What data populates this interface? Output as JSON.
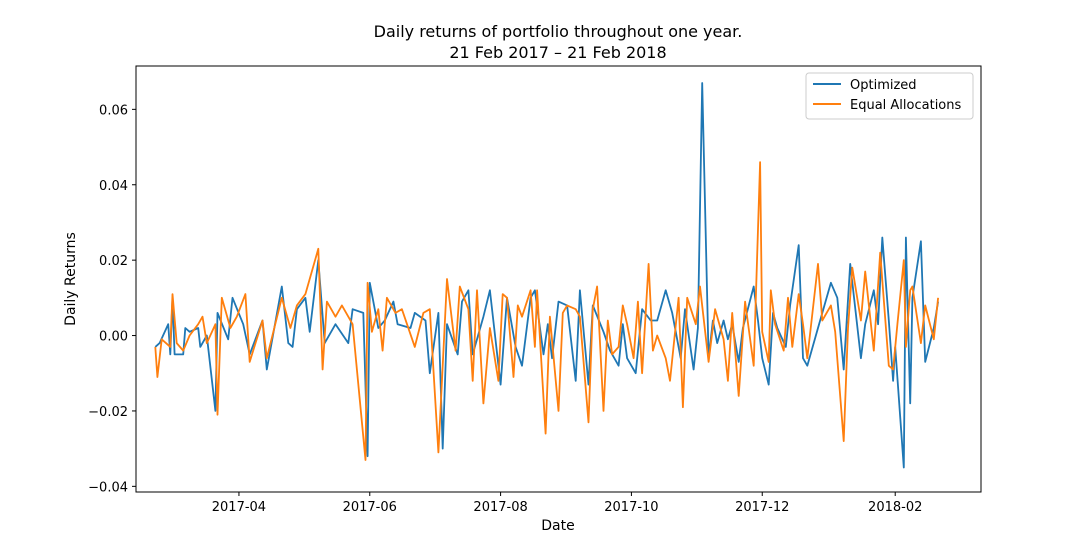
{
  "chart_data": {
    "type": "line",
    "title": "Daily returns of portfolio throughout one year.",
    "subtitle": "21 Feb 2017 – 21 Feb 2018",
    "xlabel": "Date",
    "ylabel": "Daily Returns",
    "x_axis_kind": "date",
    "xlim": [
      "2017-02-12",
      "2018-03-13"
    ],
    "ylim": [
      -0.0415,
      0.0715
    ],
    "x_ticks": [
      "2017-04-01",
      "2017-06-01",
      "2017-08-01",
      "2017-10-01",
      "2017-12-01",
      "2018-02-01"
    ],
    "x_tick_labels": [
      "2017-04",
      "2017-06",
      "2017-08",
      "2017-10",
      "2017-12",
      "2018-02"
    ],
    "y_ticks": [
      -0.04,
      -0.02,
      0.0,
      0.02,
      0.04,
      0.06
    ],
    "y_tick_labels": [
      "−0.04",
      "−0.02",
      "0.00",
      "0.02",
      "0.04",
      "0.06"
    ],
    "grid": false,
    "legend_position": "upper right",
    "series": [
      {
        "name": "Optimized",
        "color": "#1f77b4",
        "points": [
          [
            "2017-02-21",
            -0.003
          ],
          [
            "2017-02-23",
            -0.002
          ],
          [
            "2017-02-27",
            0.003
          ],
          [
            "2017-02-28",
            -0.005
          ],
          [
            "2017-03-01",
            0.01
          ],
          [
            "2017-03-02",
            -0.005
          ],
          [
            "2017-03-06",
            -0.005
          ],
          [
            "2017-03-07",
            0.002
          ],
          [
            "2017-03-09",
            0.001
          ],
          [
            "2017-03-13",
            0.002
          ],
          [
            "2017-03-14",
            -0.003
          ],
          [
            "2017-03-17",
            0.0
          ],
          [
            "2017-03-21",
            -0.02
          ],
          [
            "2017-03-22",
            0.006
          ],
          [
            "2017-03-27",
            -0.001
          ],
          [
            "2017-03-29",
            0.01
          ],
          [
            "2017-04-03",
            0.003
          ],
          [
            "2017-04-06",
            -0.005
          ],
          [
            "2017-04-12",
            0.004
          ],
          [
            "2017-04-14",
            -0.009
          ],
          [
            "2017-04-21",
            0.013
          ],
          [
            "2017-04-24",
            -0.002
          ],
          [
            "2017-04-26",
            -0.003
          ],
          [
            "2017-04-28",
            0.007
          ],
          [
            "2017-05-02",
            0.01
          ],
          [
            "2017-05-04",
            0.001
          ],
          [
            "2017-05-08",
            0.02
          ],
          [
            "2017-05-11",
            -0.002
          ],
          [
            "2017-05-16",
            0.003
          ],
          [
            "2017-05-22",
            -0.002
          ],
          [
            "2017-05-24",
            0.007
          ],
          [
            "2017-05-29",
            0.006
          ],
          [
            "2017-05-31",
            -0.032
          ],
          [
            "2017-06-01",
            0.014
          ],
          [
            "2017-06-05",
            0.002
          ],
          [
            "2017-06-08",
            0.004
          ],
          [
            "2017-06-12",
            0.009
          ],
          [
            "2017-06-14",
            0.003
          ],
          [
            "2017-06-20",
            0.002
          ],
          [
            "2017-06-22",
            0.006
          ],
          [
            "2017-06-27",
            0.004
          ],
          [
            "2017-06-29",
            -0.01
          ],
          [
            "2017-07-03",
            0.006
          ],
          [
            "2017-07-05",
            -0.03
          ],
          [
            "2017-07-07",
            0.003
          ],
          [
            "2017-07-12",
            -0.005
          ],
          [
            "2017-07-14",
            0.009
          ],
          [
            "2017-07-17",
            0.012
          ],
          [
            "2017-07-19",
            -0.005
          ],
          [
            "2017-07-24",
            0.005
          ],
          [
            "2017-07-27",
            0.012
          ],
          [
            "2017-08-01",
            -0.013
          ],
          [
            "2017-08-04",
            0.01
          ],
          [
            "2017-08-08",
            -0.003
          ],
          [
            "2017-08-11",
            -0.008
          ],
          [
            "2017-08-15",
            0.01
          ],
          [
            "2017-08-17",
            0.012
          ],
          [
            "2017-08-21",
            -0.005
          ],
          [
            "2017-08-23",
            0.003
          ],
          [
            "2017-08-25",
            -0.006
          ],
          [
            "2017-08-28",
            0.009
          ],
          [
            "2017-09-01",
            0.008
          ],
          [
            "2017-09-05",
            -0.012
          ],
          [
            "2017-09-07",
            0.012
          ],
          [
            "2017-09-11",
            -0.013
          ],
          [
            "2017-09-13",
            0.008
          ],
          [
            "2017-09-18",
            0.001
          ],
          [
            "2017-09-21",
            -0.004
          ],
          [
            "2017-09-25",
            -0.008
          ],
          [
            "2017-09-27",
            0.003
          ],
          [
            "2017-09-29",
            -0.006
          ],
          [
            "2017-10-03",
            -0.01
          ],
          [
            "2017-10-06",
            0.007
          ],
          [
            "2017-10-10",
            0.004
          ],
          [
            "2017-10-13",
            0.004
          ],
          [
            "2017-10-17",
            0.012
          ],
          [
            "2017-10-20",
            0.006
          ],
          [
            "2017-10-24",
            -0.006
          ],
          [
            "2017-10-26",
            0.007
          ],
          [
            "2017-10-30",
            -0.009
          ],
          [
            "2017-11-01",
            0.002
          ],
          [
            "2017-11-03",
            0.067
          ],
          [
            "2017-11-06",
            -0.006
          ],
          [
            "2017-11-08",
            0.004
          ],
          [
            "2017-11-10",
            -0.002
          ],
          [
            "2017-11-13",
            0.004
          ],
          [
            "2017-11-15",
            -0.001
          ],
          [
            "2017-11-17",
            0.003
          ],
          [
            "2017-11-20",
            -0.007
          ],
          [
            "2017-11-22",
            0.002
          ],
          [
            "2017-11-27",
            0.013
          ],
          [
            "2017-11-29",
            0.004
          ],
          [
            "2017-12-01",
            -0.006
          ],
          [
            "2017-12-04",
            -0.013
          ],
          [
            "2017-12-06",
            0.006
          ],
          [
            "2017-12-08",
            0.002
          ],
          [
            "2017-12-12",
            -0.003
          ],
          [
            "2017-12-14",
            0.008
          ],
          [
            "2017-12-18",
            0.024
          ],
          [
            "2017-12-20",
            -0.006
          ],
          [
            "2017-12-22",
            -0.008
          ],
          [
            "2017-12-27",
            0.002
          ],
          [
            "2018-01-02",
            0.014
          ],
          [
            "2018-01-05",
            0.01
          ],
          [
            "2018-01-08",
            -0.009
          ],
          [
            "2018-01-11",
            0.019
          ],
          [
            "2018-01-16",
            -0.006
          ],
          [
            "2018-01-18",
            0.003
          ],
          [
            "2018-01-22",
            0.012
          ],
          [
            "2018-01-24",
            0.003
          ],
          [
            "2018-01-26",
            0.026
          ],
          [
            "2018-01-29",
            0.004
          ],
          [
            "2018-01-31",
            -0.012
          ],
          [
            "2018-02-01",
            -0.003
          ],
          [
            "2018-02-05",
            -0.035
          ],
          [
            "2018-02-06",
            0.026
          ],
          [
            "2018-02-08",
            -0.018
          ],
          [
            "2018-02-09",
            0.01
          ],
          [
            "2018-02-13",
            0.025
          ],
          [
            "2018-02-15",
            -0.007
          ],
          [
            "2018-02-19",
            0.002
          ],
          [
            "2018-02-21",
            0.009
          ]
        ]
      },
      {
        "name": "Equal Allocations",
        "color": "#ff7f0e",
        "points": [
          [
            "2017-02-21",
            -0.003
          ],
          [
            "2017-02-22",
            -0.011
          ],
          [
            "2017-02-24",
            -0.001
          ],
          [
            "2017-02-28",
            -0.003
          ],
          [
            "2017-03-01",
            0.011
          ],
          [
            "2017-03-03",
            -0.002
          ],
          [
            "2017-03-06",
            -0.004
          ],
          [
            "2017-03-09",
            0.0
          ],
          [
            "2017-03-13",
            0.003
          ],
          [
            "2017-03-15",
            0.005
          ],
          [
            "2017-03-17",
            -0.002
          ],
          [
            "2017-03-21",
            0.003
          ],
          [
            "2017-03-22",
            -0.021
          ],
          [
            "2017-03-24",
            0.01
          ],
          [
            "2017-03-28",
            0.002
          ],
          [
            "2017-03-31",
            0.005
          ],
          [
            "2017-04-04",
            0.011
          ],
          [
            "2017-04-06",
            -0.007
          ],
          [
            "2017-04-12",
            0.004
          ],
          [
            "2017-04-14",
            -0.006
          ],
          [
            "2017-04-21",
            0.01
          ],
          [
            "2017-04-25",
            0.002
          ],
          [
            "2017-04-28",
            0.008
          ],
          [
            "2017-05-02",
            0.011
          ],
          [
            "2017-05-08",
            0.023
          ],
          [
            "2017-05-10",
            -0.009
          ],
          [
            "2017-05-12",
            0.009
          ],
          [
            "2017-05-16",
            0.005
          ],
          [
            "2017-05-19",
            0.008
          ],
          [
            "2017-05-24",
            0.003
          ],
          [
            "2017-05-30",
            -0.033
          ],
          [
            "2017-05-31",
            0.014
          ],
          [
            "2017-06-02",
            0.001
          ],
          [
            "2017-06-05",
            0.007
          ],
          [
            "2017-06-07",
            -0.004
          ],
          [
            "2017-06-09",
            0.01
          ],
          [
            "2017-06-13",
            0.006
          ],
          [
            "2017-06-16",
            0.007
          ],
          [
            "2017-06-22",
            -0.003
          ],
          [
            "2017-06-26",
            0.006
          ],
          [
            "2017-06-29",
            0.007
          ],
          [
            "2017-07-03",
            -0.031
          ],
          [
            "2017-07-07",
            0.015
          ],
          [
            "2017-07-11",
            -0.004
          ],
          [
            "2017-07-13",
            0.013
          ],
          [
            "2017-07-17",
            0.007
          ],
          [
            "2017-07-19",
            -0.012
          ],
          [
            "2017-07-21",
            0.012
          ],
          [
            "2017-07-24",
            -0.018
          ],
          [
            "2017-07-27",
            0.002
          ],
          [
            "2017-07-31",
            -0.012
          ],
          [
            "2017-08-02",
            0.011
          ],
          [
            "2017-08-04",
            0.01
          ],
          [
            "2017-08-07",
            -0.011
          ],
          [
            "2017-08-09",
            0.008
          ],
          [
            "2017-08-11",
            0.005
          ],
          [
            "2017-08-15",
            0.012
          ],
          [
            "2017-08-17",
            -0.003
          ],
          [
            "2017-08-18",
            0.012
          ],
          [
            "2017-08-22",
            -0.026
          ],
          [
            "2017-08-24",
            0.005
          ],
          [
            "2017-08-28",
            -0.02
          ],
          [
            "2017-08-30",
            0.006
          ],
          [
            "2017-09-01",
            0.008
          ],
          [
            "2017-09-05",
            0.007
          ],
          [
            "2017-09-07",
            0.005
          ],
          [
            "2017-09-11",
            -0.023
          ],
          [
            "2017-09-13",
            0.007
          ],
          [
            "2017-09-15",
            0.013
          ],
          [
            "2017-09-18",
            -0.02
          ],
          [
            "2017-09-20",
            0.004
          ],
          [
            "2017-09-22",
            -0.005
          ],
          [
            "2017-09-25",
            -0.003
          ],
          [
            "2017-09-27",
            0.008
          ],
          [
            "2017-09-29",
            0.003
          ],
          [
            "2017-10-02",
            -0.006
          ],
          [
            "2017-10-04",
            0.009
          ],
          [
            "2017-10-06",
            -0.01
          ],
          [
            "2017-10-09",
            0.019
          ],
          [
            "2017-10-11",
            -0.004
          ],
          [
            "2017-10-13",
            0.0
          ],
          [
            "2017-10-17",
            -0.006
          ],
          [
            "2017-10-19",
            -0.012
          ],
          [
            "2017-10-23",
            0.01
          ],
          [
            "2017-10-25",
            -0.019
          ],
          [
            "2017-10-27",
            0.01
          ],
          [
            "2017-10-31",
            0.003
          ],
          [
            "2017-11-02",
            0.013
          ],
          [
            "2017-11-06",
            -0.007
          ],
          [
            "2017-11-09",
            0.007
          ],
          [
            "2017-11-13",
            -0.001
          ],
          [
            "2017-11-15",
            -0.012
          ],
          [
            "2017-11-17",
            0.006
          ],
          [
            "2017-11-20",
            -0.016
          ],
          [
            "2017-11-23",
            0.009
          ],
          [
            "2017-11-27",
            -0.008
          ],
          [
            "2017-11-30",
            0.046
          ],
          [
            "2017-12-01",
            0.001
          ],
          [
            "2017-12-04",
            -0.007
          ],
          [
            "2017-12-05",
            0.012
          ],
          [
            "2017-12-07",
            0.003
          ],
          [
            "2017-12-11",
            -0.004
          ],
          [
            "2017-12-13",
            0.01
          ],
          [
            "2017-12-15",
            -0.003
          ],
          [
            "2017-12-18",
            0.011
          ],
          [
            "2017-12-20",
            0.003
          ],
          [
            "2017-12-22",
            -0.006
          ],
          [
            "2017-12-27",
            0.019
          ],
          [
            "2017-12-29",
            0.004
          ],
          [
            "2018-01-02",
            0.008
          ],
          [
            "2018-01-04",
            0.001
          ],
          [
            "2018-01-08",
            -0.028
          ],
          [
            "2018-01-10",
            0.002
          ],
          [
            "2018-01-12",
            0.018
          ],
          [
            "2018-01-16",
            0.004
          ],
          [
            "2018-01-18",
            0.017
          ],
          [
            "2018-01-22",
            -0.004
          ],
          [
            "2018-01-25",
            0.022
          ],
          [
            "2018-01-29",
            -0.008
          ],
          [
            "2018-01-31",
            -0.009
          ],
          [
            "2018-02-02",
            0.003
          ],
          [
            "2018-02-05",
            0.02
          ],
          [
            "2018-02-06",
            -0.003
          ],
          [
            "2018-02-08",
            0.012
          ],
          [
            "2018-02-09",
            0.013
          ],
          [
            "2018-02-13",
            -0.002
          ],
          [
            "2018-02-15",
            0.008
          ],
          [
            "2018-02-19",
            -0.001
          ],
          [
            "2018-02-21",
            0.01
          ]
        ]
      }
    ]
  }
}
